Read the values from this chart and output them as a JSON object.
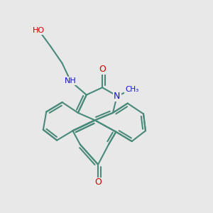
{
  "bg_color": "#e8e8e8",
  "bond_color": "#4a8a7a",
  "bond_width": 1.5,
  "atom_colors": {
    "O": "#cc0000",
    "N": "#1010cc",
    "C": "#4a8a7a"
  },
  "fig_size": [
    3.0,
    3.0
  ],
  "dpi": 100,
  "xlim": [
    0,
    10
  ],
  "ylim": [
    0,
    10
  ]
}
